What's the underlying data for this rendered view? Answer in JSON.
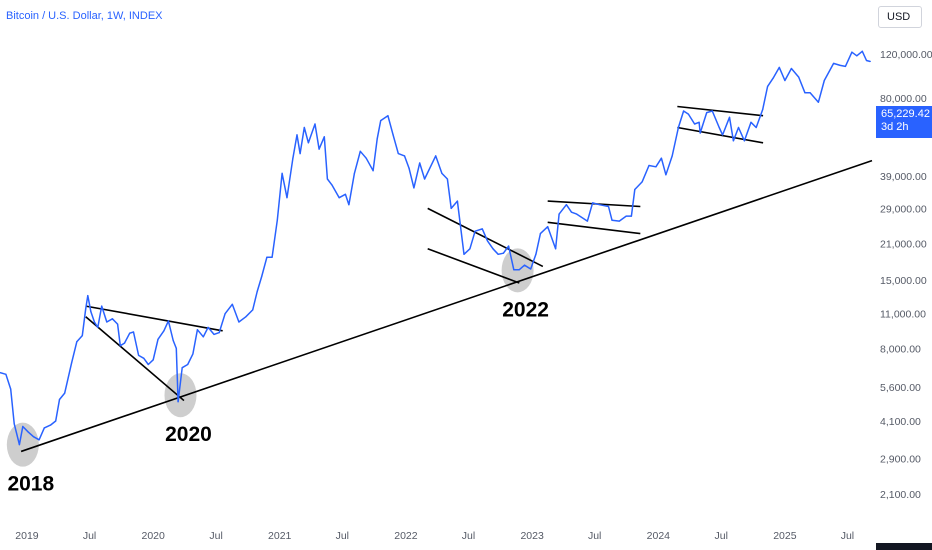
{
  "header": {
    "title": "Bitcoin / U.S. Dollar, 1W, INDEX",
    "currency": "USD"
  },
  "price_badge": {
    "price": "65,229.42",
    "countdown": "3d 2h"
  },
  "colors": {
    "line": "#2962ff",
    "annotation": "#000000",
    "highlight": "#bdbdbd",
    "axis_text": "#555a66",
    "badge": "#2962ff"
  },
  "chart_data": {
    "type": "line",
    "scale": "log",
    "grid": false,
    "title": "Bitcoin / U.S. Dollar, 1W, INDEX",
    "y_ticks": [
      120000,
      80000,
      39000,
      29000,
      21000,
      15000,
      11000,
      8000,
      5600,
      4100,
      2900,
      2100
    ],
    "y_tick_labels": [
      "120,000.00",
      "80,000.00",
      "39,000.00",
      "29,000.00",
      "21,000.00",
      "15,000.00",
      "11,000.00",
      "8,000.00",
      "5,600.00",
      "4,100.00",
      "2,900.00",
      "2,100.00"
    ],
    "x_tick_labels": [
      "2019",
      "Jul",
      "2020",
      "Jul",
      "2021",
      "Jul",
      "2022",
      "Jul",
      "2023",
      "Jul",
      "2024",
      "Jul",
      "2025",
      "Jul"
    ],
    "x_ticks": [
      "2019-01-01",
      "2019-07-01",
      "2020-01-01",
      "2020-07-01",
      "2021-01-01",
      "2021-07-01",
      "2022-01-01",
      "2022-07-01",
      "2023-01-01",
      "2023-07-01",
      "2024-01-01",
      "2024-07-01",
      "2025-01-01",
      "2025-07-01"
    ],
    "xlim": [
      "2018-10-15",
      "2025-09-10"
    ],
    "ylim": [
      1650,
      190000
    ],
    "series": [
      {
        "points": [
          [
            "2018-10-15",
            6400
          ],
          [
            "2018-11-01",
            6300
          ],
          [
            "2018-11-15",
            5500
          ],
          [
            "2018-11-25",
            4000
          ],
          [
            "2018-12-10",
            3300
          ],
          [
            "2018-12-20",
            3900
          ],
          [
            "2019-01-05",
            3700
          ],
          [
            "2019-01-20",
            3550
          ],
          [
            "2019-02-05",
            3450
          ],
          [
            "2019-02-20",
            3850
          ],
          [
            "2019-03-10",
            3950
          ],
          [
            "2019-03-25",
            4100
          ],
          [
            "2019-04-05",
            5000
          ],
          [
            "2019-04-20",
            5300
          ],
          [
            "2019-05-10",
            7000
          ],
          [
            "2019-05-25",
            8500
          ],
          [
            "2019-06-10",
            9000
          ],
          [
            "2019-06-20",
            11500
          ],
          [
            "2019-06-26",
            13000
          ],
          [
            "2019-07-05",
            11200
          ],
          [
            "2019-07-15",
            10200
          ],
          [
            "2019-07-25",
            9700
          ],
          [
            "2019-08-05",
            11800
          ],
          [
            "2019-08-20",
            10200
          ],
          [
            "2019-09-05",
            10500
          ],
          [
            "2019-09-20",
            10000
          ],
          [
            "2019-09-28",
            8200
          ],
          [
            "2019-10-10",
            8400
          ],
          [
            "2019-10-25",
            9200
          ],
          [
            "2019-11-05",
            9300
          ],
          [
            "2019-11-20",
            7500
          ],
          [
            "2019-12-05",
            7300
          ],
          [
            "2019-12-18",
            6900
          ],
          [
            "2020-01-01",
            7200
          ],
          [
            "2020-01-15",
            8700
          ],
          [
            "2020-02-01",
            9400
          ],
          [
            "2020-02-14",
            10300
          ],
          [
            "2020-02-28",
            8600
          ],
          [
            "2020-03-08",
            8000
          ],
          [
            "2020-03-13",
            4900
          ],
          [
            "2020-03-25",
            6700
          ],
          [
            "2020-04-10",
            6900
          ],
          [
            "2020-04-25",
            7600
          ],
          [
            "2020-05-08",
            9500
          ],
          [
            "2020-05-25",
            8900
          ],
          [
            "2020-06-08",
            9700
          ],
          [
            "2020-06-25",
            9100
          ],
          [
            "2020-07-10",
            9250
          ],
          [
            "2020-07-27",
            11000
          ],
          [
            "2020-08-17",
            12000
          ],
          [
            "2020-09-05",
            10200
          ],
          [
            "2020-09-25",
            10700
          ],
          [
            "2020-10-15",
            11400
          ],
          [
            "2020-10-28",
            13500
          ],
          [
            "2020-11-10",
            15500
          ],
          [
            "2020-11-25",
            18500
          ],
          [
            "2020-12-10",
            18500
          ],
          [
            "2020-12-25",
            26000
          ],
          [
            "2021-01-08",
            40000
          ],
          [
            "2021-01-22",
            32000
          ],
          [
            "2021-02-08",
            46000
          ],
          [
            "2021-02-20",
            57000
          ],
          [
            "2021-03-01",
            48000
          ],
          [
            "2021-03-13",
            61000
          ],
          [
            "2021-03-25",
            53000
          ],
          [
            "2021-04-13",
            63000
          ],
          [
            "2021-04-25",
            50000
          ],
          [
            "2021-05-10",
            56000
          ],
          [
            "2021-05-19",
            38000
          ],
          [
            "2021-06-01",
            36000
          ],
          [
            "2021-06-22",
            32000
          ],
          [
            "2021-07-10",
            33000
          ],
          [
            "2021-07-20",
            30000
          ],
          [
            "2021-08-05",
            40000
          ],
          [
            "2021-08-22",
            49000
          ],
          [
            "2021-09-08",
            46000
          ],
          [
            "2021-09-28",
            41000
          ],
          [
            "2021-10-10",
            55000
          ],
          [
            "2021-10-20",
            65000
          ],
          [
            "2021-11-10",
            68000
          ],
          [
            "2021-11-25",
            57000
          ],
          [
            "2021-12-10",
            48000
          ],
          [
            "2021-12-28",
            47000
          ],
          [
            "2022-01-10",
            42000
          ],
          [
            "2022-01-24",
            35000
          ],
          [
            "2022-02-10",
            44000
          ],
          [
            "2022-02-24",
            38000
          ],
          [
            "2022-03-28",
            47000
          ],
          [
            "2022-04-15",
            40000
          ],
          [
            "2022-05-01",
            38000
          ],
          [
            "2022-05-12",
            29000
          ],
          [
            "2022-05-30",
            31000
          ],
          [
            "2022-06-18",
            19000
          ],
          [
            "2022-07-05",
            20000
          ],
          [
            "2022-07-20",
            23500
          ],
          [
            "2022-08-10",
            24000
          ],
          [
            "2022-08-25",
            21500
          ],
          [
            "2022-09-10",
            20000
          ],
          [
            "2022-09-25",
            19000
          ],
          [
            "2022-10-10",
            19200
          ],
          [
            "2022-10-25",
            20500
          ],
          [
            "2022-11-09",
            16500
          ],
          [
            "2022-11-25",
            16500
          ],
          [
            "2022-12-10",
            17200
          ],
          [
            "2022-12-28",
            16600
          ],
          [
            "2023-01-12",
            19000
          ],
          [
            "2023-01-25",
            23000
          ],
          [
            "2023-02-15",
            24500
          ],
          [
            "2023-03-10",
            20000
          ],
          [
            "2023-03-20",
            27500
          ],
          [
            "2023-04-10",
            30000
          ],
          [
            "2023-04-25",
            28000
          ],
          [
            "2023-05-10",
            27500
          ],
          [
            "2023-06-10",
            25800
          ],
          [
            "2023-06-25",
            30500
          ],
          [
            "2023-07-15",
            30000
          ],
          [
            "2023-08-10",
            29500
          ],
          [
            "2023-08-20",
            26000
          ],
          [
            "2023-09-10",
            25800
          ],
          [
            "2023-09-30",
            27000
          ],
          [
            "2023-10-15",
            27000
          ],
          [
            "2023-10-25",
            34500
          ],
          [
            "2023-11-15",
            37000
          ],
          [
            "2023-12-05",
            43000
          ],
          [
            "2023-12-25",
            42500
          ],
          [
            "2024-01-10",
            46000
          ],
          [
            "2024-01-23",
            39500
          ],
          [
            "2024-02-10",
            47000
          ],
          [
            "2024-02-28",
            61000
          ],
          [
            "2024-03-14",
            71000
          ],
          [
            "2024-03-28",
            69000
          ],
          [
            "2024-04-15",
            63000
          ],
          [
            "2024-04-28",
            64000
          ],
          [
            "2024-05-01",
            58000
          ],
          [
            "2024-05-20",
            70000
          ],
          [
            "2024-06-05",
            71000
          ],
          [
            "2024-06-25",
            61000
          ],
          [
            "2024-07-05",
            57000
          ],
          [
            "2024-07-25",
            67000
          ],
          [
            "2024-08-05",
            54000
          ],
          [
            "2024-08-20",
            61000
          ],
          [
            "2024-09-06",
            54000
          ],
          [
            "2024-09-25",
            64000
          ],
          [
            "2024-10-10",
            61000
          ],
          [
            "2024-10-29",
            72000
          ],
          [
            "2024-11-12",
            89000
          ],
          [
            "2024-11-28",
            96000
          ],
          [
            "2024-12-16",
            106000
          ],
          [
            "2025-01-01",
            94000
          ],
          [
            "2025-01-20",
            105000
          ],
          [
            "2025-02-10",
            97000
          ],
          [
            "2025-02-28",
            84000
          ],
          [
            "2025-03-15",
            84000
          ],
          [
            "2025-04-08",
            77000
          ],
          [
            "2025-04-25",
            94000
          ],
          [
            "2025-05-22",
            110000
          ],
          [
            "2025-06-10",
            108000
          ],
          [
            "2025-06-25",
            107000
          ],
          [
            "2025-07-14",
            122000
          ],
          [
            "2025-07-28",
            118000
          ],
          [
            "2025-08-13",
            123000
          ],
          [
            "2025-08-25",
            113000
          ],
          [
            "2025-09-05",
            112000
          ]
        ]
      }
    ],
    "annotations": {
      "support_line": [
        [
          "2018-12-15",
          3100
        ],
        [
          "2025-09-10",
          45000
        ]
      ],
      "trend_lines": [
        [
          [
            "2019-06-20",
            11800
          ],
          [
            "2020-07-20",
            9400
          ]
        ],
        [
          [
            "2019-06-20",
            10700
          ],
          [
            "2020-03-30",
            4950
          ]
        ],
        [
          [
            "2022-03-05",
            20000
          ],
          [
            "2022-11-25",
            14600
          ]
        ],
        [
          [
            "2022-03-05",
            29000
          ],
          [
            "2023-02-01",
            17000
          ]
        ],
        [
          [
            "2023-02-15",
            31000
          ],
          [
            "2023-11-10",
            29500
          ]
        ],
        [
          [
            "2023-02-15",
            25500
          ],
          [
            "2023-11-10",
            23000
          ]
        ],
        [
          [
            "2024-02-25",
            74000
          ],
          [
            "2024-10-30",
            68000
          ]
        ],
        [
          [
            "2024-02-25",
            61000
          ],
          [
            "2024-10-30",
            53000
          ]
        ]
      ],
      "circles": [
        {
          "date": "2018-12-20",
          "price": 3300,
          "label": "2018"
        },
        {
          "date": "2020-03-20",
          "price": 5200,
          "label": "2020"
        },
        {
          "date": "2022-11-20",
          "price": 16400,
          "label": "2022"
        }
      ]
    }
  }
}
